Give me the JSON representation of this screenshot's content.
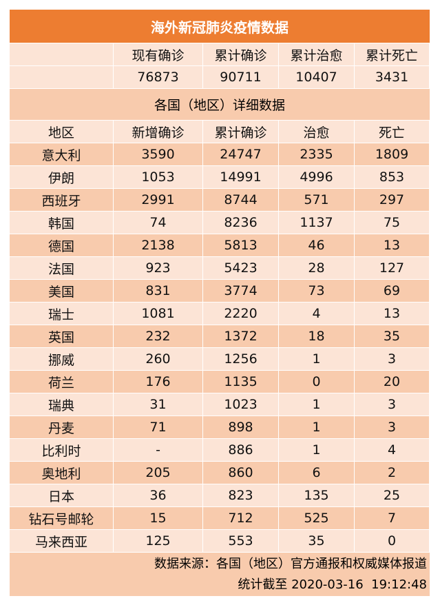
{
  "title": "海外新冠肺炎疫情数据",
  "summary": {
    "headers": [
      "现有确诊",
      "累计确诊",
      "累计治愈",
      "累计死亡"
    ],
    "values": [
      76873,
      90711,
      10407,
      3431
    ]
  },
  "section_title": "各国（地区）详细数据",
  "table": {
    "headers": [
      "地区",
      "新增确诊",
      "累计确诊",
      "治愈",
      "死亡"
    ],
    "rows": [
      [
        "意大利",
        3590,
        24747,
        2335,
        1809
      ],
      [
        "伊朗",
        1053,
        14991,
        4996,
        853
      ],
      [
        "西班牙",
        2991,
        8744,
        571,
        297
      ],
      [
        "韩国",
        74,
        8236,
        1137,
        75
      ],
      [
        "德国",
        2138,
        5813,
        46,
        13
      ],
      [
        "法国",
        923,
        5423,
        28,
        127
      ],
      [
        "美国",
        831,
        3774,
        73,
        69
      ],
      [
        "瑞士",
        1081,
        2220,
        4,
        13
      ],
      [
        "英国",
        232,
        1372,
        18,
        35
      ],
      [
        "挪威",
        260,
        1256,
        1,
        3
      ],
      [
        "荷兰",
        176,
        1135,
        0,
        20
      ],
      [
        "瑞典",
        31,
        1023,
        1,
        3
      ],
      [
        "丹麦",
        71,
        898,
        1,
        3
      ],
      [
        "比利时",
        "-",
        886,
        1,
        4
      ],
      [
        "奥地利",
        205,
        860,
        6,
        2
      ],
      [
        "日本",
        36,
        823,
        135,
        25
      ],
      [
        "钻石号邮轮",
        15,
        712,
        525,
        7
      ],
      [
        "马来西亚",
        125,
        553,
        35,
        0
      ]
    ]
  },
  "footer": {
    "source": "数据来源：各国（地区）官方通报和权威媒体报道",
    "timestamp": "统计截至 2020-03-16  19:12:48"
  }
}
